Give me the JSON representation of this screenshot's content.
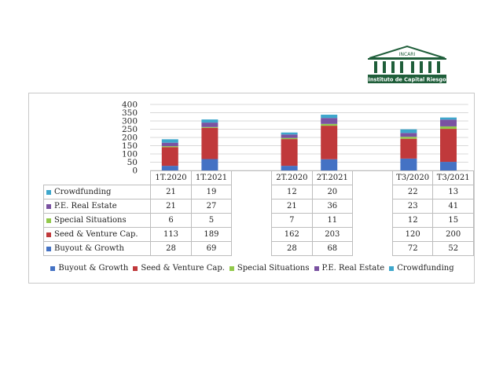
{
  "logo": {
    "abbr": "INCARI",
    "name": "Instituto de Capital Riesgo"
  },
  "colors": {
    "Buyout & Growth": "#4472c4",
    "Seed & Venture Cap.": "#c0393b",
    "Special Situations": "#92c94b",
    "P.E. Real Estate": "#7a52a1",
    "Crowdfunding": "#3ea7cc"
  },
  "chart_data": {
    "type": "bar",
    "stacked": true,
    "categories": [
      "1T.2020",
      "1T.2021",
      "",
      "2T.2020",
      "2T.2021",
      "",
      "T3/2020",
      "T3/2021"
    ],
    "series": [
      {
        "name": "Buyout & Growth",
        "values": [
          28,
          69,
          null,
          28,
          68,
          null,
          72,
          52
        ]
      },
      {
        "name": "Seed & Venture Cap.",
        "values": [
          113,
          189,
          null,
          162,
          203,
          null,
          120,
          200
        ]
      },
      {
        "name": "Special Situations",
        "values": [
          6,
          5,
          null,
          7,
          11,
          null,
          12,
          15
        ]
      },
      {
        "name": "P.E. Real Estate",
        "values": [
          21,
          27,
          null,
          21,
          36,
          null,
          23,
          41
        ]
      },
      {
        "name": "Crowdfunding",
        "values": [
          21,
          19,
          null,
          12,
          20,
          null,
          22,
          13
        ]
      }
    ],
    "ylim": [
      0,
      400
    ],
    "yticks": [
      0,
      50,
      100,
      150,
      200,
      250,
      300,
      350,
      400
    ],
    "grid": true,
    "legend_position": "bottom",
    "table_row_order": [
      "Crowdfunding",
      "P.E. Real Estate",
      "Special Situations",
      "Seed & Venture Cap.",
      "Buyout & Growth"
    ]
  }
}
